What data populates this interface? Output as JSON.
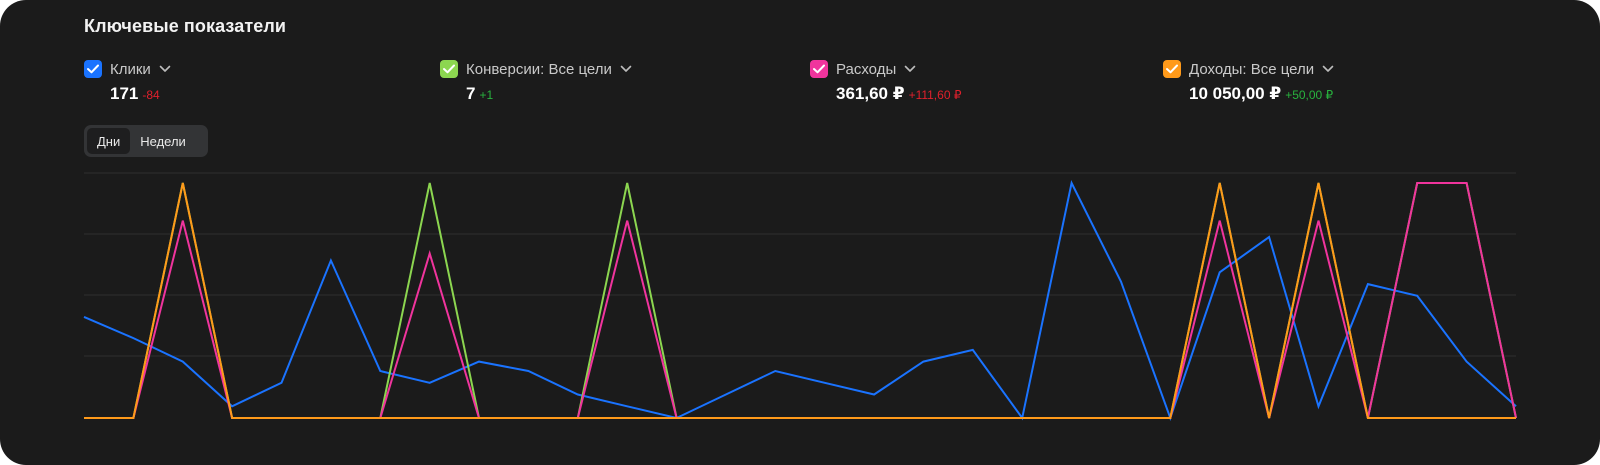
{
  "title": "Ключевые показатели",
  "metrics": [
    {
      "name": "Клики",
      "value": "171",
      "delta": "-84",
      "color": "#1a73ff",
      "delta_color": "#e0202c"
    },
    {
      "name": "Конверсии: Все цели",
      "value": "7",
      "delta": "+1",
      "color": "#8cd650",
      "delta_color": "#28b33e"
    },
    {
      "name": "Расходы",
      "value": "361,60 ₽",
      "delta": "+111,60 ₽",
      "color": "#f0349d",
      "delta_color": "#e0202c"
    },
    {
      "name": "Доходы: Все цели",
      "value": "10 050,00 ₽",
      "delta": "+50,00 ₽",
      "color": "#ff9a1a",
      "delta_color": "#28b33e"
    }
  ],
  "toggle": {
    "days": "Дни",
    "weeks": "Недели",
    "selected": "Дни"
  },
  "chart_data": {
    "type": "line",
    "grid": true,
    "legend": "top",
    "ylim": [
      0,
      1
    ],
    "x_start_label": "",
    "x_end_label": "",
    "series": [
      {
        "name": "Клики",
        "color": "#1a73ff",
        "values": [
          0.43,
          0.34,
          0.24,
          0.05,
          0.15,
          0.67,
          0.2,
          0.15,
          0.24,
          0.2,
          0.1,
          0.05,
          0,
          0.1,
          0.2,
          0.15,
          0.1,
          0.24,
          0.29,
          0,
          1,
          0.58,
          0,
          0.62,
          0.77,
          0.05,
          0.57,
          0.52,
          0.24,
          0.05
        ]
      },
      {
        "name": "Конверсии: Все цели",
        "color": "#8cd650",
        "values": [
          0,
          0,
          1,
          0,
          0,
          0,
          0,
          1,
          0,
          0,
          0,
          1,
          0,
          0,
          0,
          0,
          0,
          0,
          0,
          0,
          0,
          0,
          0,
          1,
          0,
          1,
          0,
          1,
          1,
          0
        ]
      },
      {
        "name": "Расходы",
        "color": "#f0349d",
        "values": [
          0,
          0,
          0.84,
          0,
          0,
          0,
          0,
          0.7,
          0,
          0,
          0,
          0.84,
          0,
          0,
          0,
          0,
          0,
          0,
          0,
          0,
          0,
          0,
          0,
          0.84,
          0,
          0.84,
          0,
          1,
          1,
          0
        ]
      },
      {
        "name": "Доходы: Все цели",
        "color": "#ff9a1a",
        "values": [
          0,
          0,
          1,
          0,
          0,
          0,
          0,
          0,
          0,
          0,
          0,
          0,
          0,
          0,
          0,
          0,
          0,
          0,
          0,
          0,
          0,
          0,
          0,
          1,
          0,
          1,
          0,
          0,
          0,
          0
        ]
      }
    ]
  }
}
